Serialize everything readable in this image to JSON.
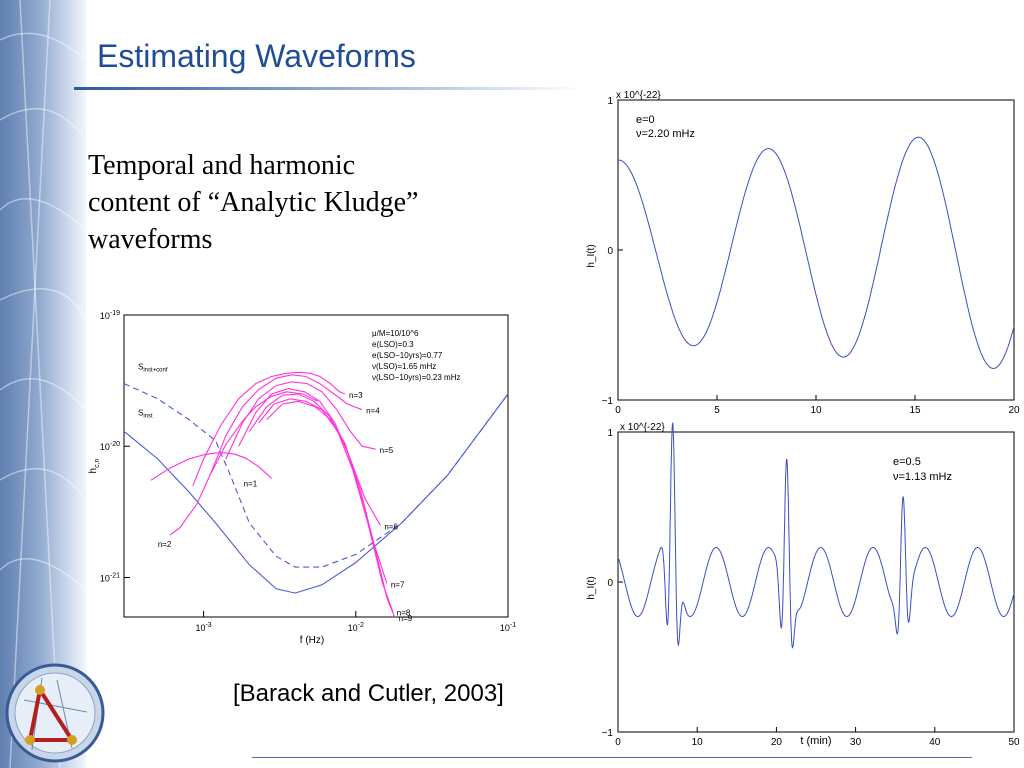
{
  "slide": {
    "title": "Estimating Waveforms",
    "body_lines": [
      "Temporal and harmonic",
      "content of “Analytic Kludge”",
      "waveforms"
    ],
    "citation": "[Barack and Cutler, 2003]"
  },
  "colors": {
    "title": "#1f4e96",
    "harmonics": "#ff33dd",
    "noise": "#4a5cd6",
    "waveform": "#3a4fc7"
  },
  "chart_data": [
    {
      "type": "line",
      "xscale": "log",
      "yscale": "log",
      "xlim": [
        0.0003,
        0.1
      ],
      "ylim": [
        5e-22,
        1e-19
      ],
      "xlabel": "f (Hz)",
      "ylabel": "h_{c,n}",
      "x_ticks": [
        "10^{-3}",
        "10^{-2}",
        "10^{-1}"
      ],
      "y_ticks": [
        "10^{-19}",
        "10^{-20}",
        "10^{-21}"
      ],
      "annotation_lines": [
        "μ/M=10/10^6",
        "e(LSO)=0.3",
        "e(LSO−10yrs)=0.77",
        "ν(LSO)=1.65 mHz",
        "ν(LSO−10yrs)=0.23 mHz"
      ],
      "series": [
        {
          "name": "S_inst+conf",
          "style": "dashed",
          "x": [
            0.0003,
            0.0005,
            0.0008,
            0.0012,
            0.0015,
            0.002,
            0.003,
            0.004,
            0.006,
            0.01,
            0.02,
            0.04,
            0.1
          ],
          "y": [
            3e-20,
            2.3e-20,
            1.6e-20,
            1.1e-20,
            6e-21,
            2.6e-21,
            1.45e-21,
            1.2e-21,
            1.2e-21,
            1.5e-21,
            2.6e-21,
            6e-21,
            2.5e-20
          ]
        },
        {
          "name": "S_inst",
          "style": "solid",
          "x": [
            0.0003,
            0.0005,
            0.0008,
            0.0012,
            0.002,
            0.003,
            0.004,
            0.006,
            0.01,
            0.02,
            0.04,
            0.1
          ],
          "y": [
            1.3e-20,
            8e-21,
            4.5e-21,
            2.6e-21,
            1.25e-21,
            8.2e-22,
            7.6e-22,
            8.8e-22,
            1.3e-21,
            2.6e-21,
            6e-21,
            2.5e-20
          ]
        },
        {
          "name": "n=1",
          "style": "solid",
          "x": [
            0.00045,
            0.0006,
            0.0008,
            0.001,
            0.0012,
            0.0014,
            0.0016,
            0.0019,
            0.0023,
            0.0028
          ],
          "y": [
            5.5e-21,
            6.8e-21,
            8e-21,
            8.6e-21,
            8.9e-21,
            8.9e-21,
            8.7e-21,
            8.1e-21,
            7e-21,
            5.7e-21
          ]
        },
        {
          "name": "n=2",
          "style": "solid",
          "x": [
            0.0006,
            0.0007,
            0.0009,
            0.0011,
            0.0014,
            0.0018,
            0.0022,
            0.0028,
            0.0035,
            0.0045,
            0.0056
          ],
          "y": [
            2.1e-21,
            2.4e-21,
            3.6e-21,
            6e-21,
            1.03e-20,
            1.55e-20,
            2e-20,
            2.4e-20,
            2.6e-20,
            2.5e-20,
            2.2e-20
          ]
        },
        {
          "name": "n=3",
          "style": "solid",
          "x": [
            0.00085,
            0.001,
            0.0013,
            0.0017,
            0.0022,
            0.0028,
            0.0035,
            0.0043,
            0.005,
            0.0058,
            0.0068,
            0.0078,
            0.0085
          ],
          "y": [
            5e-21,
            8e-21,
            1.45e-20,
            2.3e-20,
            3e-20,
            3.4e-20,
            3.6e-20,
            3.65e-20,
            3.6e-20,
            3.4e-20,
            3e-20,
            2.6e-20,
            2.5e-20
          ]
        },
        {
          "name": "n=4",
          "style": "solid",
          "x": [
            0.0011,
            0.0014,
            0.0018,
            0.0023,
            0.003,
            0.0038,
            0.0047,
            0.0058,
            0.0072,
            0.0088,
            0.011
          ],
          "y": [
            6e-21,
            1.2e-20,
            2e-20,
            2.7e-20,
            3.3e-20,
            3.5e-20,
            3.4e-20,
            3e-20,
            2.5e-20,
            2.1e-20,
            1.9e-20
          ]
        },
        {
          "name": "n=5",
          "style": "solid",
          "x": [
            0.0014,
            0.0018,
            0.0023,
            0.003,
            0.0038,
            0.0048,
            0.006,
            0.0075,
            0.0092,
            0.011,
            0.0135
          ],
          "y": [
            8e-21,
            1.5e-20,
            2.3e-20,
            2.9e-20,
            3.1e-20,
            3e-20,
            2.6e-20,
            1.9e-20,
            1.3e-20,
            1e-20,
            9.5e-21
          ]
        },
        {
          "name": "n=6",
          "style": "solid",
          "x": [
            0.0017,
            0.0022,
            0.0028,
            0.0036,
            0.0046,
            0.0058,
            0.0073,
            0.0092,
            0.0115,
            0.0145
          ],
          "y": [
            1e-20,
            1.8e-20,
            2.5e-20,
            2.75e-20,
            2.6e-20,
            2.2e-20,
            1.5e-20,
            8e-21,
            4e-21,
            2.5e-21
          ]
        },
        {
          "name": "n=7",
          "style": "solid",
          "x": [
            0.002,
            0.0026,
            0.0033,
            0.0042,
            0.0053,
            0.0067,
            0.0085,
            0.0106,
            0.0132,
            0.016
          ],
          "y": [
            1.3e-20,
            2e-20,
            2.45e-20,
            2.5e-20,
            2.2e-20,
            1.7e-20,
            1.05e-20,
            4.5e-21,
            1.8e-21,
            9e-22
          ]
        },
        {
          "name": "n=8",
          "style": "solid",
          "x": [
            0.0023,
            0.0029,
            0.0037,
            0.0047,
            0.006,
            0.0076,
            0.0096,
            0.012,
            0.015,
            0.0175
          ],
          "y": [
            1.5e-20,
            2.1e-20,
            2.3e-20,
            2.2e-20,
            1.9e-20,
            1.3e-20,
            6.5e-21,
            2.6e-21,
            9e-22,
            5.5e-22
          ]
        },
        {
          "name": "n=9",
          "style": "solid",
          "x": [
            0.0026,
            0.0033,
            0.0042,
            0.0054,
            0.0068,
            0.0086,
            0.0108,
            0.0135,
            0.016,
            0.018
          ],
          "y": [
            1.6e-20,
            2.1e-20,
            2.2e-20,
            2e-20,
            1.6e-20,
            1e-20,
            4.5e-21,
            1.6e-21,
            7e-22,
            5e-22
          ]
        }
      ]
    },
    {
      "type": "line",
      "title_lines": [
        "e=0",
        "ν=2.20 mHz"
      ],
      "exponent": "x 10^{-22}",
      "ylabel": "h_I(t)",
      "xlim": [
        0,
        20
      ],
      "ylim": [
        -1,
        1
      ],
      "x_ticks": [
        "0",
        "5",
        "10",
        "15",
        "20"
      ],
      "y_ticks": [
        "1",
        "0",
        "−1"
      ],
      "series": [
        {
          "name": "h_I(t)",
          "generator": "sinusoid",
          "frequency_mhz": 2.2,
          "t_unit": "min",
          "amplitude_start": 0.6,
          "amplitude_end": 0.8
        }
      ]
    },
    {
      "type": "line",
      "title_lines": [
        "e=0.5",
        "ν=1.13 mHz"
      ],
      "exponent": "x 10^{-22}",
      "ylabel": "h_I(t)",
      "xlabel": "t (min)",
      "xlim": [
        0,
        50
      ],
      "ylim": [
        -1,
        1
      ],
      "x_ticks": [
        "0",
        "10",
        "20",
        "30",
        "40",
        "50"
      ],
      "y_ticks": [
        "1",
        "0",
        "−1"
      ],
      "series": [
        {
          "name": "h_I(t)",
          "generator": "eccentric",
          "background_period_min": 6.6,
          "background_amplitude": 0.23,
          "bursts": [
            {
              "t": 6.9,
              "peak": 1.06
            },
            {
              "t": 21.3,
              "peak": 0.82
            },
            {
              "t": 36.0,
              "peak": 0.57
            }
          ]
        }
      ]
    }
  ]
}
